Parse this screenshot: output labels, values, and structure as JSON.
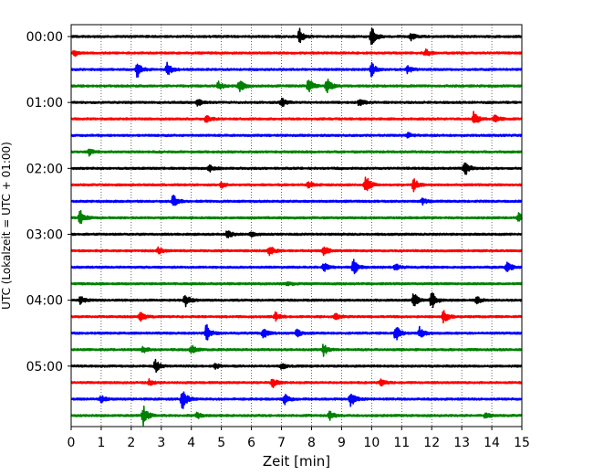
{
  "chart_data": {
    "type": "line",
    "title": "",
    "xlabel": "Zeit  [min]",
    "ylabel": "UTC (Lokalzeit = UTC + 01:00)",
    "xlim": [
      0,
      15
    ],
    "x_ticks": [
      "0",
      "1",
      "2",
      "3",
      "4",
      "5",
      "6",
      "7",
      "8",
      "9",
      "10",
      "11",
      "12",
      "13",
      "14",
      "15"
    ],
    "y_ticks": [
      "00:00",
      "01:00",
      "02:00",
      "03:00",
      "04:00",
      "05:00"
    ],
    "grid": "vertical-dotted",
    "series_colors": [
      "#000000",
      "#ff0000",
      "#0000ff",
      "#008000"
    ],
    "traces": [
      {
        "start": "00:00",
        "events": [
          [
            7.6,
            1.0
          ],
          [
            10.0,
            1.2
          ],
          [
            11.3,
            0.5
          ]
        ]
      },
      {
        "start": "00:15",
        "events": [
          [
            11.8,
            0.5
          ],
          [
            0.1,
            0.4
          ]
        ]
      },
      {
        "start": "00:30",
        "events": [
          [
            2.2,
            1.0
          ],
          [
            3.2,
            0.9
          ],
          [
            10.0,
            0.9
          ],
          [
            11.2,
            0.5
          ]
        ]
      },
      {
        "start": "00:45",
        "events": [
          [
            5.6,
            0.9
          ],
          [
            7.9,
            1.0
          ],
          [
            8.5,
            1.1
          ],
          [
            4.9,
            0.5
          ]
        ]
      },
      {
        "start": "01:00",
        "events": [
          [
            4.2,
            0.5
          ],
          [
            7.0,
            0.6
          ],
          [
            9.6,
            0.5
          ]
        ]
      },
      {
        "start": "01:15",
        "events": [
          [
            4.5,
            0.5
          ],
          [
            13.4,
            0.9
          ],
          [
            14.1,
            0.5
          ]
        ]
      },
      {
        "start": "01:30",
        "events": [
          [
            11.2,
            0.3
          ]
        ]
      },
      {
        "start": "01:45",
        "events": [
          [
            0.6,
            0.4
          ]
        ]
      },
      {
        "start": "02:00",
        "events": [
          [
            13.1,
            1.0
          ],
          [
            4.6,
            0.4
          ]
        ]
      },
      {
        "start": "02:15",
        "events": [
          [
            9.8,
            1.3
          ],
          [
            11.4,
            0.8
          ],
          [
            5.0,
            0.4
          ],
          [
            7.9,
            0.4
          ]
        ]
      },
      {
        "start": "02:30",
        "events": [
          [
            3.4,
            0.9
          ],
          [
            11.7,
            0.4
          ]
        ]
      },
      {
        "start": "02:45",
        "events": [
          [
            0.3,
            0.9
          ],
          [
            14.9,
            0.7
          ]
        ]
      },
      {
        "start": "03:00",
        "events": [
          [
            5.2,
            0.5
          ],
          [
            6.0,
            0.4
          ]
        ]
      },
      {
        "start": "03:15",
        "events": [
          [
            6.6,
            0.8
          ],
          [
            8.4,
            0.6
          ],
          [
            2.9,
            0.4
          ]
        ]
      },
      {
        "start": "03:30",
        "events": [
          [
            8.4,
            0.6
          ],
          [
            9.4,
            1.0
          ],
          [
            14.5,
            0.8
          ],
          [
            10.8,
            0.4
          ]
        ]
      },
      {
        "start": "03:45",
        "events": [
          [
            7.2,
            0.3
          ]
        ]
      },
      {
        "start": "04:00",
        "events": [
          [
            3.8,
            0.9
          ],
          [
            11.4,
            0.9
          ],
          [
            12.0,
            1.1
          ],
          [
            0.3,
            0.5
          ],
          [
            13.5,
            0.5
          ]
        ]
      },
      {
        "start": "04:15",
        "events": [
          [
            2.3,
            0.7
          ],
          [
            12.4,
            0.8
          ],
          [
            6.8,
            0.5
          ],
          [
            8.8,
            0.4
          ]
        ]
      },
      {
        "start": "04:30",
        "events": [
          [
            4.5,
            1.2
          ],
          [
            6.4,
            0.7
          ],
          [
            10.8,
            1.0
          ],
          [
            11.6,
            0.8
          ],
          [
            7.5,
            0.5
          ]
        ]
      },
      {
        "start": "04:45",
        "events": [
          [
            4.0,
            0.6
          ],
          [
            8.4,
            0.7
          ],
          [
            2.4,
            0.4
          ]
        ]
      },
      {
        "start": "05:00",
        "events": [
          [
            2.8,
            0.8
          ],
          [
            7.0,
            0.4
          ],
          [
            4.8,
            0.3
          ]
        ]
      },
      {
        "start": "05:15",
        "events": [
          [
            6.7,
            0.6
          ],
          [
            2.6,
            0.4
          ],
          [
            10.3,
            0.4
          ]
        ]
      },
      {
        "start": "05:30",
        "events": [
          [
            3.7,
            1.3
          ],
          [
            9.3,
            1.1
          ],
          [
            7.1,
            0.7
          ],
          [
            1.0,
            0.4
          ]
        ]
      },
      {
        "start": "05:45",
        "events": [
          [
            2.4,
            1.3
          ],
          [
            8.6,
            0.6
          ],
          [
            4.2,
            0.4
          ],
          [
            13.8,
            0.4
          ]
        ]
      }
    ]
  }
}
